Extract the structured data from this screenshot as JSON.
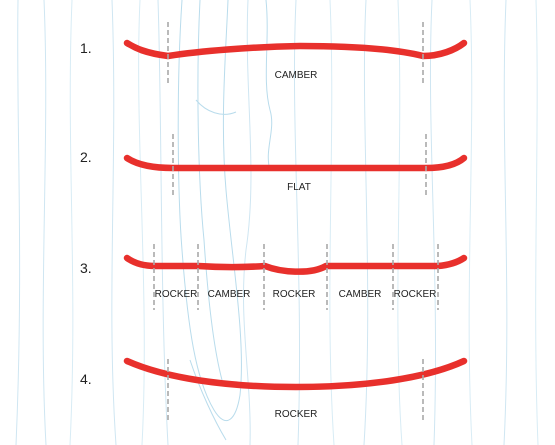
{
  "colors": {
    "background": "#ffffff",
    "grain": "#cfe6f2",
    "grain_dark": "#b9dcec",
    "board": "#e8302c",
    "marker": "#a9a9a9",
    "text": "#222222"
  },
  "profiles": [
    {
      "number": "1.",
      "shape": "camber",
      "labels": [
        "CAMBER"
      ]
    },
    {
      "number": "2.",
      "shape": "flat",
      "labels": [
        "FLAT"
      ]
    },
    {
      "number": "3.",
      "shape": "hybrid",
      "labels": [
        "ROCKER",
        "CAMBER",
        "ROCKER",
        "CAMBER",
        "ROCKER"
      ]
    },
    {
      "number": "4.",
      "shape": "rocker",
      "labels": [
        "ROCKER"
      ]
    }
  ]
}
